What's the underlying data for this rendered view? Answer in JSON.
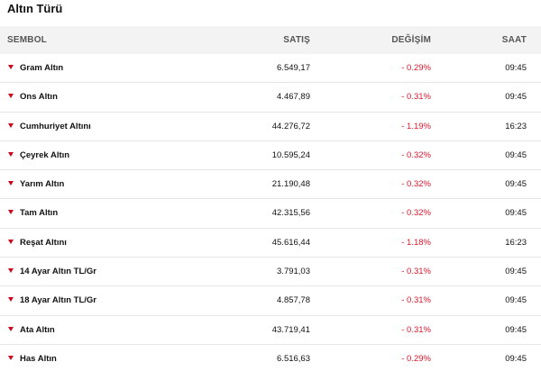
{
  "title": "Altın Türü",
  "columns": {
    "symbol": "SEMBOL",
    "price": "SATIŞ",
    "change": "DEĞİŞİM",
    "time": "SAAT"
  },
  "colors": {
    "down_arrow": "#d0021b",
    "negative_change": "#e0182d",
    "header_bg": "#f3f3f3"
  },
  "rows": [
    {
      "symbol": "Gram Altın",
      "price": "6.549,17",
      "change": "- 0.29%",
      "time": "09:45"
    },
    {
      "symbol": "Ons Altın",
      "price": "4.467,89",
      "change": "- 0.31%",
      "time": "09:45"
    },
    {
      "symbol": "Cumhuriyet Altını",
      "price": "44.276,72",
      "change": "- 1.19%",
      "time": "16:23"
    },
    {
      "symbol": "Çeyrek Altın",
      "price": "10.595,24",
      "change": "- 0.32%",
      "time": "09:45"
    },
    {
      "symbol": "Yarım Altın",
      "price": "21.190,48",
      "change": "- 0.32%",
      "time": "09:45"
    },
    {
      "symbol": "Tam Altın",
      "price": "42.315,56",
      "change": "- 0.32%",
      "time": "09:45"
    },
    {
      "symbol": "Reşat Altını",
      "price": "45.616,44",
      "change": "- 1.18%",
      "time": "16:23"
    },
    {
      "symbol": "14 Ayar Altın TL/Gr",
      "price": "3.791,03",
      "change": "- 0.31%",
      "time": "09:45"
    },
    {
      "symbol": "18 Ayar Altın TL/Gr",
      "price": "4.857,78",
      "change": "- 0.31%",
      "time": "09:45"
    },
    {
      "symbol": "Ata Altın",
      "price": "43.719,41",
      "change": "- 0.31%",
      "time": "09:45"
    },
    {
      "symbol": "Has Altın",
      "price": "6.516,63",
      "change": "- 0.29%",
      "time": "09:45"
    }
  ]
}
